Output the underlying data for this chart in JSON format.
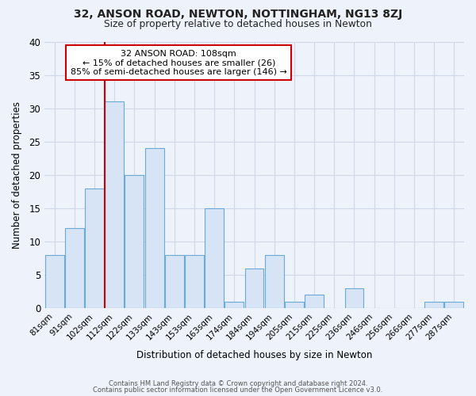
{
  "title": "32, ANSON ROAD, NEWTON, NOTTINGHAM, NG13 8ZJ",
  "subtitle": "Size of property relative to detached houses in Newton",
  "xlabel": "Distribution of detached houses by size in Newton",
  "ylabel": "Number of detached properties",
  "categories": [
    "81sqm",
    "91sqm",
    "102sqm",
    "112sqm",
    "122sqm",
    "133sqm",
    "143sqm",
    "153sqm",
    "163sqm",
    "174sqm",
    "184sqm",
    "194sqm",
    "205sqm",
    "215sqm",
    "225sqm",
    "236sqm",
    "246sqm",
    "256sqm",
    "266sqm",
    "277sqm",
    "287sqm"
  ],
  "values": [
    8,
    12,
    18,
    31,
    20,
    24,
    8,
    8,
    15,
    1,
    6,
    8,
    1,
    2,
    0,
    3,
    0,
    0,
    0,
    1,
    1
  ],
  "bar_color": "#d6e4f5",
  "bar_edgecolor": "#6aaad4",
  "bar_linewidth": 0.8,
  "red_line_x": 2.5,
  "annotation_title": "32 ANSON ROAD: 108sqm",
  "annotation_line1": "← 15% of detached houses are smaller (26)",
  "annotation_line2": "85% of semi-detached houses are larger (146) →",
  "annotation_box_facecolor": "#ffffff",
  "annotation_box_edgecolor": "#cc0000",
  "red_line_color": "#cc0000",
  "ylim": [
    0,
    40
  ],
  "yticks": [
    0,
    5,
    10,
    15,
    20,
    25,
    30,
    35,
    40
  ],
  "background_color": "#eef2fa",
  "grid_color": "#d0d8e8",
  "footer_line1": "Contains HM Land Registry data © Crown copyright and database right 2024.",
  "footer_line2": "Contains public sector information licensed under the Open Government Licence v3.0."
}
